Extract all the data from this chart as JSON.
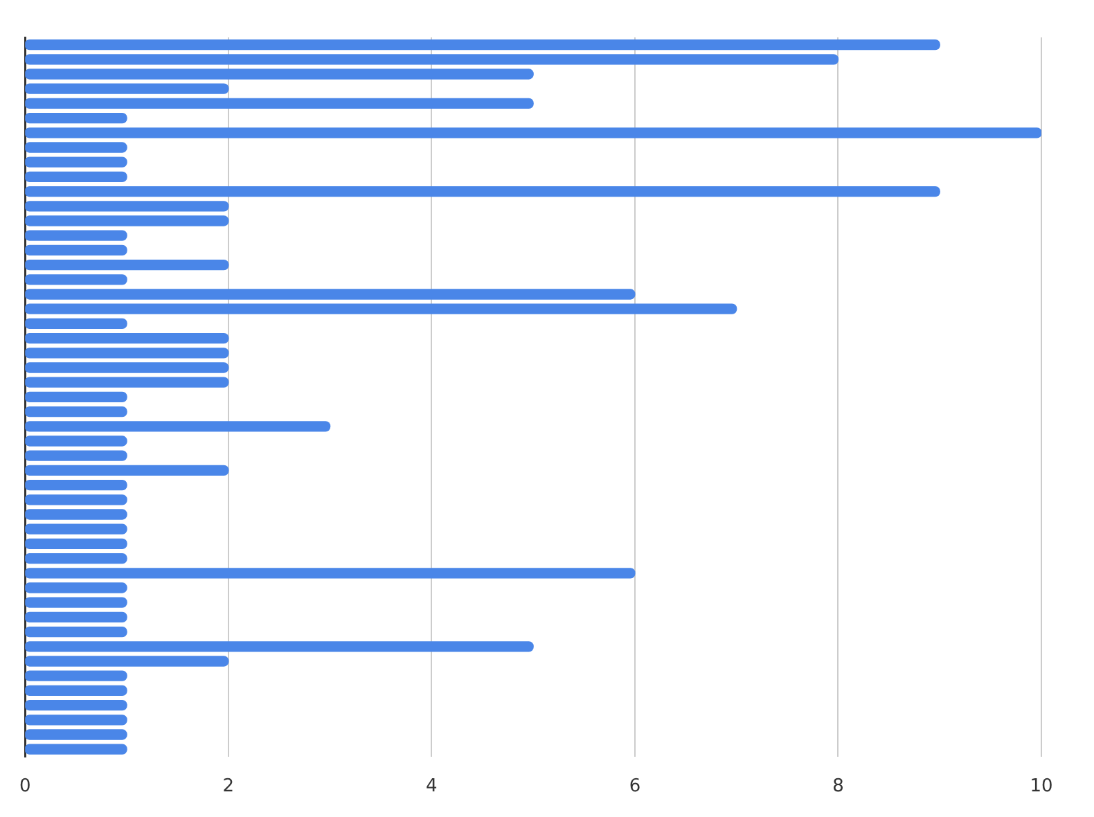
{
  "chart_data": {
    "type": "bar",
    "orientation": "horizontal",
    "categories": [
      null,
      null,
      null,
      null,
      null,
      null,
      null,
      null,
      null,
      null,
      null,
      null,
      null,
      null,
      null,
      null,
      null,
      null,
      null,
      null,
      null,
      null,
      null,
      null,
      null,
      null,
      null,
      null,
      null,
      null,
      null,
      null,
      null,
      null,
      null,
      null,
      null,
      null,
      null,
      null,
      null,
      null,
      null,
      null,
      null,
      null,
      null,
      null,
      null
    ],
    "values": [
      9,
      8,
      5,
      2,
      5,
      1,
      10,
      1,
      1,
      1,
      9,
      2,
      2,
      1,
      1,
      2,
      1,
      6,
      7,
      1,
      2,
      2,
      2,
      2,
      1,
      1,
      3,
      1,
      1,
      2,
      1,
      1,
      1,
      1,
      1,
      1,
      6,
      1,
      1,
      1,
      1,
      5,
      2,
      1,
      1,
      1,
      1,
      1,
      1
    ],
    "color": "#4a86e8",
    "xlim": [
      0,
      10
    ],
    "xticks": [
      0,
      2,
      4,
      6,
      8,
      10
    ],
    "grid": "x"
  }
}
